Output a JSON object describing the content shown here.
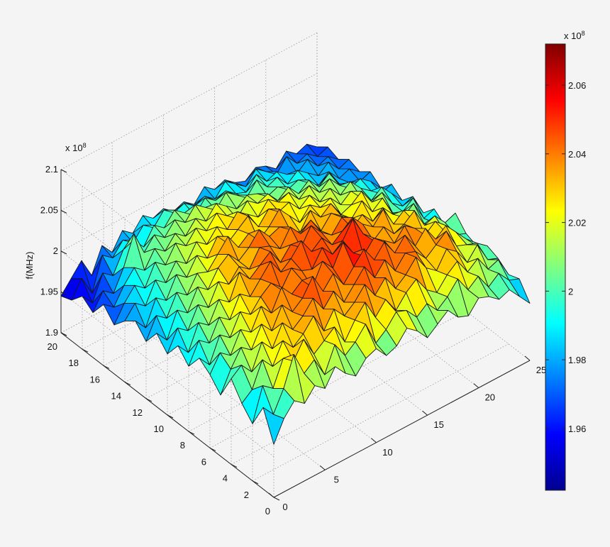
{
  "chart_data": {
    "type": "surface",
    "title": "",
    "xlabel": "",
    "ylabel": "",
    "zlabel": "f(MHz)",
    "z_exponent_label": "x 10",
    "z_exponent": "8",
    "x_ticks": [
      "0",
      "2",
      "4",
      "6",
      "8",
      "10",
      "12",
      "14",
      "16",
      "18",
      "20"
    ],
    "y_ticks": [
      "0",
      "5",
      "10",
      "15",
      "20",
      "25"
    ],
    "z_ticks": [
      "1.9",
      "1.95",
      "2",
      "2.05",
      "2.1"
    ],
    "xlim": [
      0,
      20
    ],
    "ylim": [
      0,
      25
    ],
    "zlim": [
      190000000.0,
      210000000.0
    ],
    "colorbar": {
      "exponent_label": "x 10",
      "exponent": "8",
      "ticks": [
        "1.96",
        "1.98",
        "2",
        "2.02",
        "2.04",
        "2.06"
      ],
      "range": [
        194200000.0,
        207200000.0
      ],
      "colormap": "jet"
    },
    "grid": true,
    "surface_rows": [
      0,
      1,
      2,
      3,
      4,
      5,
      6,
      7,
      8,
      9,
      10,
      11,
      12,
      13,
      14,
      15,
      16,
      17,
      18,
      19,
      20
    ],
    "surface_cols": [
      0,
      1,
      2,
      3,
      4,
      5,
      6,
      7,
      8,
      9,
      10,
      11,
      12,
      13,
      14,
      15,
      16,
      17,
      18,
      19,
      20,
      21,
      22,
      23,
      24,
      25
    ],
    "surface_z_e8": [
      [
        1.965,
        1.99,
        2.005,
        1.995,
        2.01,
        2.0,
        2.02,
        2.005,
        1.995,
        2.01,
        2.015,
        2.0,
        2.005,
        2.02,
        2.01,
        1.995,
        2.005,
        2.015,
        2.0,
        1.995,
        2.01,
        2.005,
        1.995,
        2.0,
        1.985,
        1.97
      ],
      [
        2.0,
        1.985,
        2.01,
        2.045,
        2.015,
        2.025,
        2.0,
        2.03,
        2.01,
        2.02,
        2.035,
        2.005,
        2.015,
        2.03,
        2.025,
        2.01,
        2.02,
        2.005,
        2.015,
        2.03,
        2.01,
        2.02,
        2.0,
        2.01,
        1.995,
        1.99
      ],
      [
        1.97,
        2.01,
        2.0,
        2.03,
        2.02,
        2.04,
        2.015,
        2.025,
        2.035,
        2.01,
        2.03,
        2.045,
        2.02,
        2.035,
        2.015,
        2.03,
        2.04,
        2.02,
        2.01,
        2.025,
        2.035,
        2.015,
        2.025,
        2.005,
        2.01,
        1.985
      ],
      [
        1.985,
        1.995,
        2.025,
        2.01,
        2.035,
        2.02,
        2.03,
        2.045,
        2.02,
        2.04,
        2.025,
        2.035,
        2.05,
        2.03,
        2.045,
        2.025,
        2.035,
        2.05,
        2.03,
        2.02,
        2.04,
        2.03,
        2.01,
        2.025,
        2.0,
        1.995
      ],
      [
        2.005,
        2.015,
        2.0,
        2.03,
        2.015,
        2.04,
        2.025,
        2.035,
        2.05,
        2.03,
        2.045,
        2.025,
        2.04,
        2.055,
        2.035,
        2.05,
        2.03,
        2.045,
        2.04,
        2.025,
        2.035,
        2.045,
        2.02,
        2.015,
        2.01,
        2.0
      ],
      [
        1.975,
        2.0,
        2.02,
        2.01,
        2.035,
        2.02,
        2.045,
        2.03,
        2.04,
        2.06,
        2.035,
        2.05,
        2.03,
        2.045,
        2.06,
        2.04,
        2.055,
        2.035,
        2.05,
        2.03,
        2.045,
        2.025,
        2.035,
        2.02,
        2.005,
        1.99
      ],
      [
        1.99,
        2.01,
        2.0,
        2.025,
        2.015,
        2.04,
        2.025,
        2.05,
        2.035,
        2.045,
        2.03,
        2.055,
        2.04,
        2.065,
        2.045,
        2.035,
        2.05,
        2.04,
        2.03,
        2.045,
        2.035,
        2.02,
        2.03,
        2.01,
        2.0,
        1.995
      ],
      [
        2.0,
        1.985,
        2.015,
        2.005,
        2.03,
        2.02,
        2.035,
        2.045,
        2.03,
        2.05,
        2.04,
        2.035,
        2.055,
        2.04,
        2.05,
        2.07,
        2.045,
        2.03,
        2.04,
        2.025,
        2.03,
        2.04,
        2.015,
        2.02,
        2.005,
        2.01
      ],
      [
        1.98,
        2.005,
        1.995,
        2.02,
        2.01,
        2.035,
        2.025,
        2.04,
        2.055,
        2.035,
        2.045,
        2.06,
        2.04,
        2.05,
        2.035,
        2.045,
        2.055,
        2.04,
        2.03,
        2.045,
        2.02,
        2.03,
        2.01,
        2.0,
        1.995,
        1.985
      ],
      [
        1.995,
        1.98,
        2.01,
        2.0,
        2.025,
        2.015,
        2.045,
        2.03,
        2.04,
        2.05,
        2.03,
        2.045,
        2.035,
        2.055,
        2.04,
        2.03,
        2.045,
        2.025,
        2.035,
        2.02,
        2.03,
        2.015,
        2.005,
        2.015,
        1.99,
        1.995
      ],
      [
        1.975,
        2.0,
        1.99,
        2.015,
        2.005,
        2.03,
        2.02,
        2.035,
        2.025,
        2.045,
        2.04,
        2.03,
        2.05,
        2.035,
        2.045,
        2.025,
        2.04,
        2.03,
        2.02,
        2.035,
        2.015,
        2.025,
        2.0,
        1.995,
        2.005,
        1.98
      ],
      [
        1.99,
        1.975,
        2.005,
        1.995,
        2.02,
        2.01,
        2.03,
        2.04,
        2.025,
        2.035,
        2.05,
        2.035,
        2.04,
        2.03,
        2.02,
        2.04,
        2.025,
        2.035,
        2.015,
        2.02,
        2.03,
        2.01,
        2.015,
        1.995,
        1.985,
        1.99
      ],
      [
        1.97,
        1.995,
        1.985,
        2.01,
        2.0,
        2.02,
        2.015,
        2.03,
        2.045,
        2.025,
        2.035,
        2.02,
        2.03,
        2.045,
        2.03,
        2.015,
        2.03,
        2.02,
        2.025,
        2.01,
        2.02,
        2.005,
        1.995,
        2.005,
        1.99,
        1.975
      ],
      [
        1.985,
        1.97,
        2.0,
        1.99,
        2.015,
        2.005,
        2.025,
        2.015,
        2.035,
        2.02,
        2.03,
        2.04,
        2.02,
        2.035,
        2.025,
        2.03,
        2.015,
        2.025,
        2.01,
        2.02,
        2.005,
        2.015,
        2.0,
        1.99,
        1.98,
        1.985
      ],
      [
        1.975,
        1.99,
        1.98,
        2.005,
        1.995,
        2.015,
        2.005,
        2.025,
        2.015,
        2.03,
        2.02,
        2.035,
        2.025,
        2.015,
        2.03,
        2.02,
        2.025,
        2.01,
        2.02,
        2.005,
        2.015,
        2.0,
        1.99,
        1.995,
        1.985,
        1.97
      ],
      [
        1.96,
        1.98,
        1.995,
        1.985,
        2.01,
        2.0,
        2.02,
        2.01,
        2.025,
        2.015,
        2.03,
        2.02,
        2.01,
        2.025,
        2.015,
        2.02,
        2.005,
        2.015,
        2.0,
        2.01,
        1.995,
        2.005,
        1.985,
        1.98,
        1.975,
        1.98
      ],
      [
        1.975,
        1.965,
        1.985,
        2.0,
        1.99,
        2.01,
        2.0,
        2.015,
        2.005,
        2.02,
        2.01,
        2.025,
        2.015,
        2.005,
        2.015,
        2.01,
        2.0,
        2.005,
        1.995,
        2.0,
        1.99,
        1.98,
        1.99,
        1.975,
        1.98,
        1.97
      ],
      [
        1.955,
        1.975,
        1.965,
        1.99,
        2.025,
        1.995,
        2.01,
        2.0,
        2.015,
        2.005,
        2.02,
        2.01,
        2.0,
        2.015,
        2.005,
        1.995,
        2.01,
        1.995,
        2.0,
        1.985,
        1.995,
        1.985,
        1.975,
        1.985,
        1.97,
        1.975
      ],
      [
        1.965,
        1.95,
        1.98,
        1.97,
        1.995,
        2.0,
        1.985,
        2.005,
        1.995,
        2.01,
        2.0,
        1.99,
        2.005,
        1.995,
        2.0,
        1.99,
        1.985,
        2.0,
        1.985,
        1.99,
        1.98,
        1.975,
        1.985,
        1.97,
        1.975,
        1.965
      ],
      [
        1.95,
        1.97,
        1.945,
        1.985,
        1.975,
        1.99,
        1.98,
        1.995,
        1.985,
        2.0,
        1.99,
        1.995,
        1.985,
        1.99,
        1.98,
        1.995,
        1.985,
        1.975,
        1.99,
        1.98,
        1.97,
        1.985,
        1.97,
        1.975,
        1.965,
        1.97
      ],
      [
        1.945,
        1.96,
        1.975,
        1.95,
        1.98,
        1.965,
        1.985,
        1.975,
        1.99,
        1.98,
        1.985,
        1.975,
        1.98,
        1.97,
        1.985,
        1.975,
        1.98,
        1.97,
        1.965,
        1.975,
        1.97,
        1.96,
        1.975,
        1.965,
        1.97,
        1.96
      ]
    ]
  }
}
